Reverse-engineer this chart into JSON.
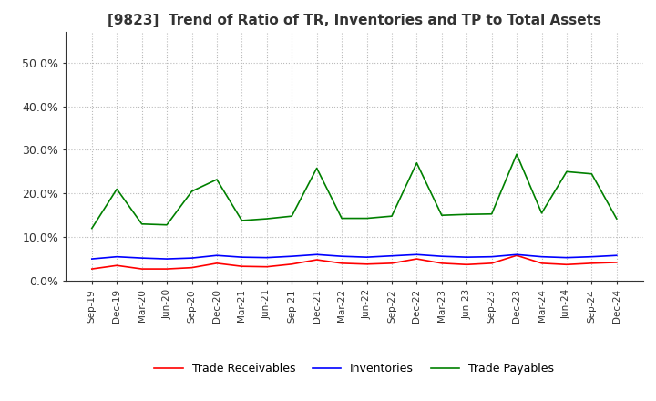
{
  "title": "[9823]  Trend of Ratio of TR, Inventories and TP to Total Assets",
  "x_labels": [
    "Sep-19",
    "Dec-19",
    "Mar-20",
    "Jun-20",
    "Sep-20",
    "Dec-20",
    "Mar-21",
    "Jun-21",
    "Sep-21",
    "Dec-21",
    "Mar-22",
    "Jun-22",
    "Sep-22",
    "Dec-22",
    "Mar-23",
    "Jun-23",
    "Sep-23",
    "Dec-23",
    "Mar-24",
    "Jun-24",
    "Sep-24",
    "Dec-24"
  ],
  "trade_receivables": [
    0.027,
    0.035,
    0.027,
    0.027,
    0.03,
    0.04,
    0.033,
    0.032,
    0.038,
    0.048,
    0.04,
    0.038,
    0.04,
    0.05,
    0.04,
    0.037,
    0.04,
    0.058,
    0.04,
    0.037,
    0.04,
    0.042
  ],
  "inventories": [
    0.05,
    0.055,
    0.052,
    0.05,
    0.052,
    0.058,
    0.054,
    0.053,
    0.056,
    0.06,
    0.056,
    0.054,
    0.057,
    0.06,
    0.056,
    0.054,
    0.055,
    0.06,
    0.055,
    0.053,
    0.055,
    0.058
  ],
  "trade_payables": [
    0.12,
    0.21,
    0.13,
    0.128,
    0.205,
    0.232,
    0.138,
    0.142,
    0.148,
    0.258,
    0.143,
    0.143,
    0.148,
    0.27,
    0.15,
    0.152,
    0.153,
    0.29,
    0.155,
    0.25,
    0.245,
    0.142
  ],
  "tr_color": "#ff0000",
  "inv_color": "#0000ff",
  "tp_color": "#008000",
  "ylim": [
    0.0,
    0.57
  ],
  "yticks": [
    0.0,
    0.1,
    0.2,
    0.3,
    0.4,
    0.5
  ],
  "ytick_labels": [
    "0.0%",
    "10.0%",
    "20.0%",
    "30.0%",
    "40.0%",
    "50.0%"
  ],
  "legend_labels": [
    "Trade Receivables",
    "Inventories",
    "Trade Payables"
  ],
  "background_color": "#ffffff",
  "grid_color": "#aaaaaa"
}
